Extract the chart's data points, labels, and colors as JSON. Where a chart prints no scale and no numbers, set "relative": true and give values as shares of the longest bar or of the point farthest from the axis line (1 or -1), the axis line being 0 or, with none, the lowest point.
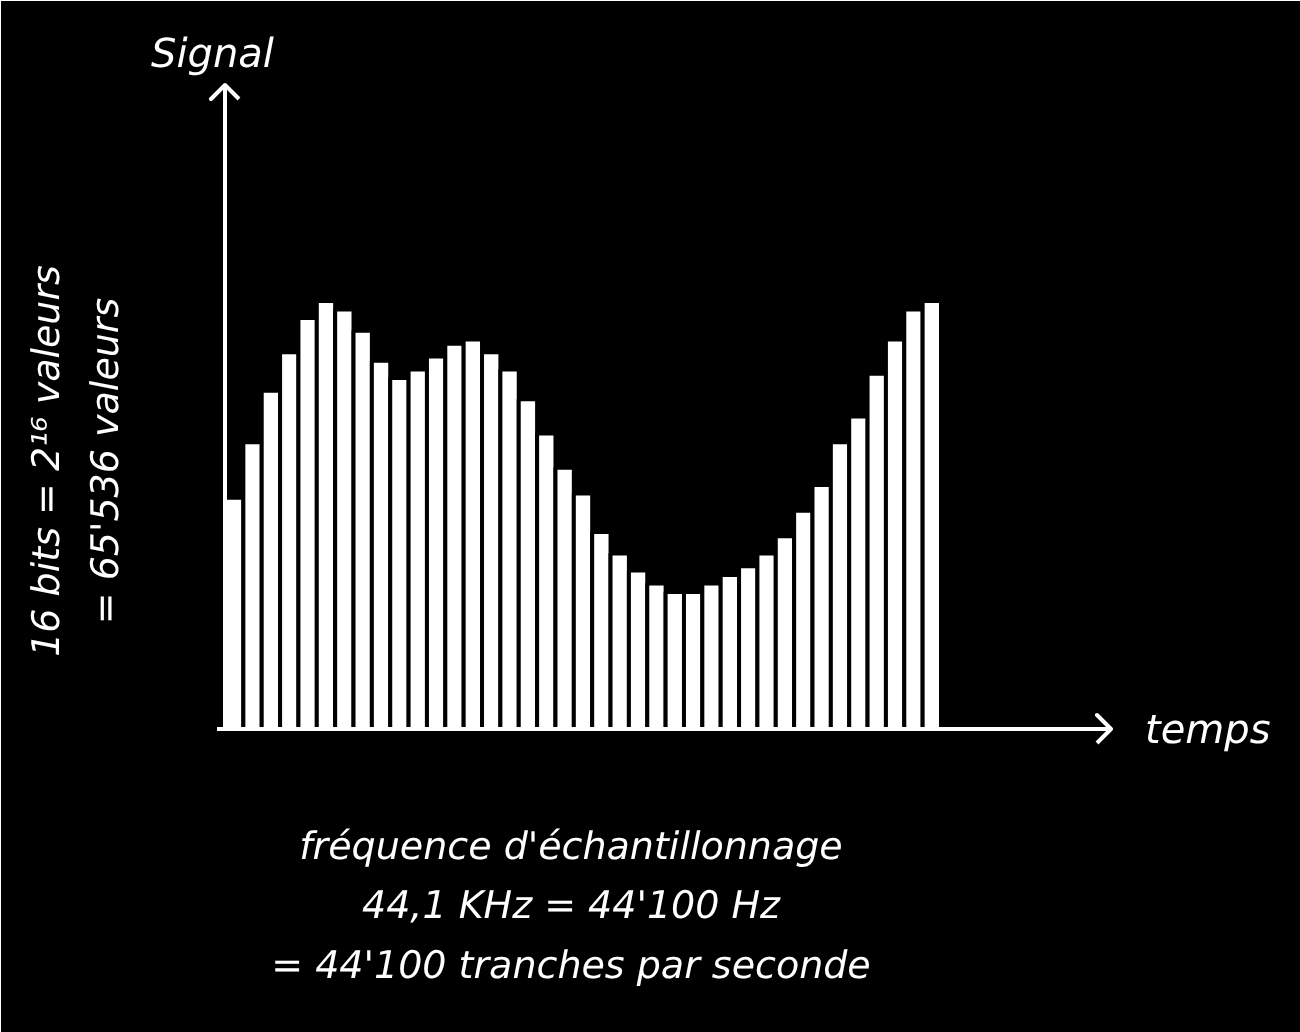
{
  "chart_data": {
    "type": "bar",
    "relative": true,
    "categories": [
      null,
      null,
      null,
      null,
      null,
      null,
      null,
      null,
      null,
      null,
      null,
      null,
      null,
      null,
      null,
      null,
      null,
      null,
      null,
      null,
      null,
      null,
      null,
      null,
      null,
      null,
      null,
      null,
      null,
      null,
      null,
      null,
      null,
      null,
      null,
      null,
      null,
      null,
      null
    ],
    "values": [
      0.54,
      0.67,
      0.79,
      0.88,
      0.96,
      1.0,
      0.98,
      0.93,
      0.86,
      0.82,
      0.84,
      0.87,
      0.9,
      0.91,
      0.88,
      0.84,
      0.77,
      0.69,
      0.61,
      0.55,
      0.46,
      0.41,
      0.37,
      0.34,
      0.32,
      0.32,
      0.34,
      0.36,
      0.38,
      0.41,
      0.45,
      0.51,
      0.57,
      0.67,
      0.73,
      0.83,
      0.91,
      0.98,
      1.0
    ],
    "color": "#ffffff",
    "annotations": [
      "16 bits = 2¹⁶ valeurs\n= 65'536 valeurs",
      "fréquence d'échantillonnage\n44,1 KHz = 44'100 Hz\n= 44'100 tranches par seconde",
      "Signal",
      "temps"
    ]
  }
}
